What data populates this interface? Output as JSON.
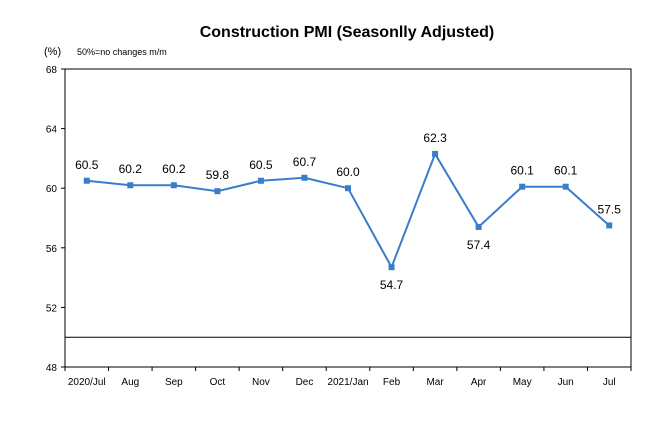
{
  "chart_data": {
    "type": "line",
    "title": "Construction PMI (Seasonlly Adjusted)",
    "unit_label": "(%)",
    "note": "50%=no changes  m/m",
    "categories": [
      "2020/Jul",
      "Aug",
      "Sep",
      "Oct",
      "Nov",
      "Dec",
      "2021/Jan",
      "Feb",
      "Mar",
      "Apr",
      "May",
      "Jun",
      "Jul"
    ],
    "values": [
      60.5,
      60.2,
      60.2,
      59.8,
      60.5,
      60.7,
      60.0,
      54.7,
      62.3,
      57.4,
      60.1,
      60.1,
      57.5
    ],
    "data_labels": [
      "60.5",
      "60.2",
      "60.2",
      "59.8",
      "60.5",
      "60.7",
      "60.0",
      "54.7",
      "62.3",
      "57.4",
      "60.1",
      "60.1",
      "57.5"
    ],
    "label_placement": [
      "above",
      "above",
      "above",
      "above",
      "above",
      "above",
      "above",
      "below",
      "above",
      "below",
      "above",
      "above",
      "above"
    ],
    "yticks": [
      "48",
      "52",
      "56",
      "60",
      "64",
      "68"
    ],
    "ylim": [
      48,
      68
    ],
    "reference_line": 50,
    "grid": false,
    "series_color": "#3A7DC9",
    "axis_color": "#000000"
  }
}
